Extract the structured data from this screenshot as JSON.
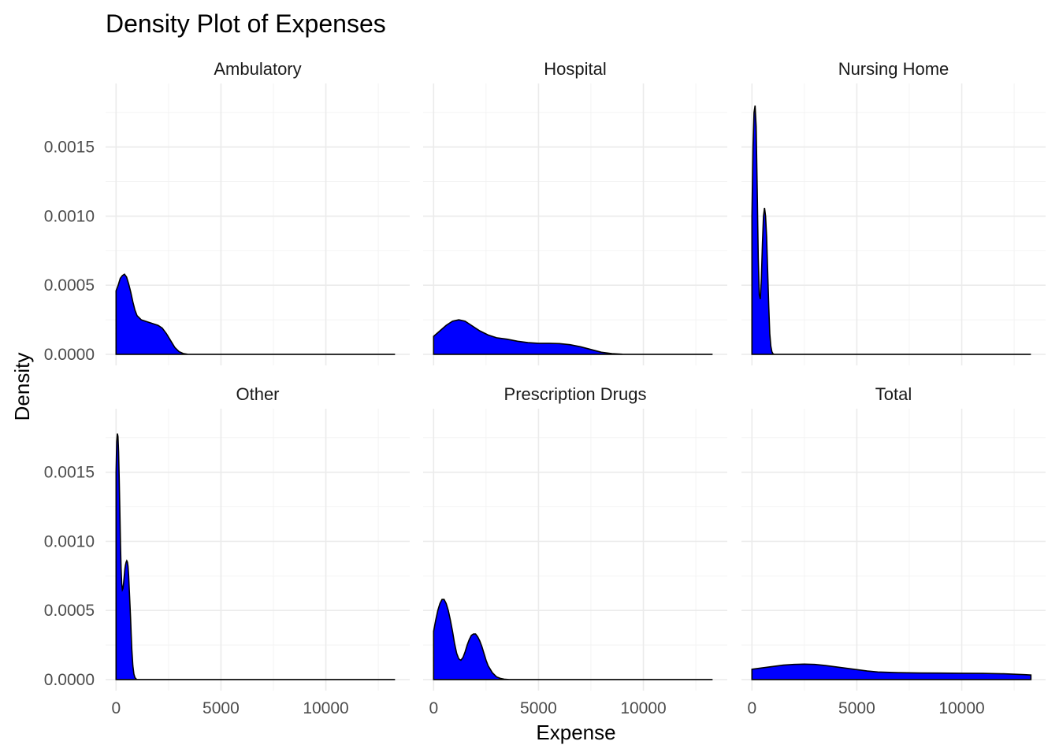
{
  "chart_data": {
    "type": "area",
    "title": "Density Plot of Expenses",
    "xlabel": "Expense",
    "ylabel": "Density",
    "xlim": [
      -500,
      14000
    ],
    "ylim": [
      -8e-05,
      0.00196
    ],
    "x_ticks": [
      0,
      5000,
      10000
    ],
    "x_tick_labels": [
      "0",
      "5000",
      "10000"
    ],
    "y_ticks": [
      0.0,
      0.0005,
      0.001,
      0.0015
    ],
    "y_tick_labels": [
      "0.0000",
      "0.0005",
      "0.0010",
      "0.0015"
    ],
    "grid": true,
    "fill_color": "#0000FF",
    "line_color": "#000000",
    "facet_layout": {
      "rows": 2,
      "cols": 3
    },
    "facets": [
      {
        "name": "Ambulatory",
        "x": [
          0,
          100,
          200,
          300,
          400,
          500,
          600,
          700,
          800,
          900,
          1000,
          1200,
          1400,
          1600,
          1800,
          2000,
          2200,
          2400,
          2600,
          2800,
          3000,
          3200,
          3400,
          3600,
          4000,
          6000,
          9000,
          13300
        ],
        "y": [
          0.00046,
          0.0005,
          0.00055,
          0.00057,
          0.00058,
          0.00056,
          0.00051,
          0.00045,
          0.00038,
          0.00032,
          0.00028,
          0.00025,
          0.00024,
          0.00023,
          0.00022,
          0.00021,
          0.00019,
          0.00015,
          0.0001,
          5e-05,
          2e-05,
          6e-06,
          1e-06,
          0.0,
          0.0,
          0.0,
          0.0,
          0.0
        ]
      },
      {
        "name": "Hospital",
        "x": [
          0,
          300,
          600,
          900,
          1200,
          1500,
          1800,
          2200,
          2600,
          3000,
          3500,
          4000,
          4500,
          5000,
          5500,
          6000,
          6500,
          7000,
          7500,
          8000,
          8500,
          9000,
          10000,
          13300
        ],
        "y": [
          0.00013,
          0.00017,
          0.00021,
          0.00024,
          0.00025,
          0.00024,
          0.00021,
          0.00017,
          0.00014,
          0.00012,
          0.00011,
          9.5e-05,
          8.5e-05,
          8e-05,
          8e-05,
          7.8e-05,
          7e-05,
          5.5e-05,
          3.5e-05,
          1.5e-05,
          5e-06,
          1e-06,
          0.0,
          0.0
        ]
      },
      {
        "name": "Nursing Home",
        "x": [
          0,
          50,
          100,
          150,
          200,
          250,
          300,
          350,
          400,
          450,
          500,
          550,
          600,
          650,
          700,
          750,
          800,
          850,
          900,
          950,
          1000,
          1050,
          1100,
          1200,
          1400,
          3000,
          13300
        ],
        "y": [
          0.001,
          0.0015,
          0.00175,
          0.0018,
          0.00165,
          0.0012,
          0.0007,
          0.00043,
          0.0004,
          0.00055,
          0.0008,
          0.001,
          0.00106,
          0.001,
          0.00085,
          0.0006,
          0.00035,
          0.00015,
          6e-05,
          2e-05,
          5e-06,
          1e-06,
          0.0,
          0.0,
          0.0,
          0.0,
          0.0
        ]
      },
      {
        "name": "Other",
        "x": [
          0,
          30,
          60,
          90,
          120,
          150,
          180,
          210,
          240,
          270,
          300,
          330,
          360,
          390,
          420,
          450,
          480,
          510,
          540,
          570,
          600,
          630,
          660,
          690,
          720,
          750,
          800,
          850,
          900,
          950,
          1000,
          1100,
          1200,
          1500,
          3000,
          13300
        ],
        "y": [
          0.0015,
          0.00172,
          0.00178,
          0.00176,
          0.00165,
          0.00145,
          0.00122,
          0.00098,
          0.0008,
          0.00069,
          0.00065,
          0.00066,
          0.0007,
          0.00075,
          0.0008,
          0.00083,
          0.00085,
          0.00086,
          0.00085,
          0.00082,
          0.00075,
          0.00065,
          0.00055,
          0.00045,
          0.00033,
          0.00022,
          0.0001,
          4e-05,
          1.5e-05,
          5e-06,
          1e-06,
          0.0,
          0.0,
          0.0,
          0.0,
          0.0
        ]
      },
      {
        "name": "Prescription Drugs",
        "x": [
          0,
          100,
          200,
          300,
          400,
          500,
          600,
          700,
          800,
          900,
          1000,
          1100,
          1200,
          1300,
          1400,
          1500,
          1600,
          1700,
          1800,
          1900,
          2000,
          2100,
          2200,
          2300,
          2400,
          2500,
          2600,
          2800,
          3000,
          3200,
          3400,
          3600,
          4000,
          6000,
          13300
        ],
        "y": [
          0.00035,
          0.00043,
          0.0005,
          0.00055,
          0.00058,
          0.00058,
          0.00055,
          0.0005,
          0.00043,
          0.00035,
          0.00026,
          0.00019,
          0.00015,
          0.00014,
          0.00016,
          0.0002,
          0.00025,
          0.00029,
          0.00032,
          0.00033,
          0.00033,
          0.00031,
          0.00028,
          0.00024,
          0.00019,
          0.00014,
          0.0001,
          5e-05,
          2e-05,
          8e-06,
          2e-06,
          0.0,
          0.0,
          0.0,
          0.0
        ]
      },
      {
        "name": "Total",
        "x": [
          0,
          500,
          1000,
          1500,
          2000,
          2500,
          3000,
          3500,
          4000,
          4500,
          5000,
          5500,
          6000,
          7000,
          8000,
          9000,
          10000,
          11000,
          12000,
          13000,
          13300
        ],
        "y": [
          7.5e-05,
          8.5e-05,
          9.5e-05,
          0.000105,
          0.00011,
          0.000112,
          0.00011,
          0.000102,
          9.2e-05,
          8.2e-05,
          7.2e-05,
          6.2e-05,
          5.5e-05,
          5e-05,
          4.8e-05,
          4.7e-05,
          4.6e-05,
          4.5e-05,
          4.2e-05,
          3.6e-05,
          3.3e-05
        ]
      }
    ]
  }
}
